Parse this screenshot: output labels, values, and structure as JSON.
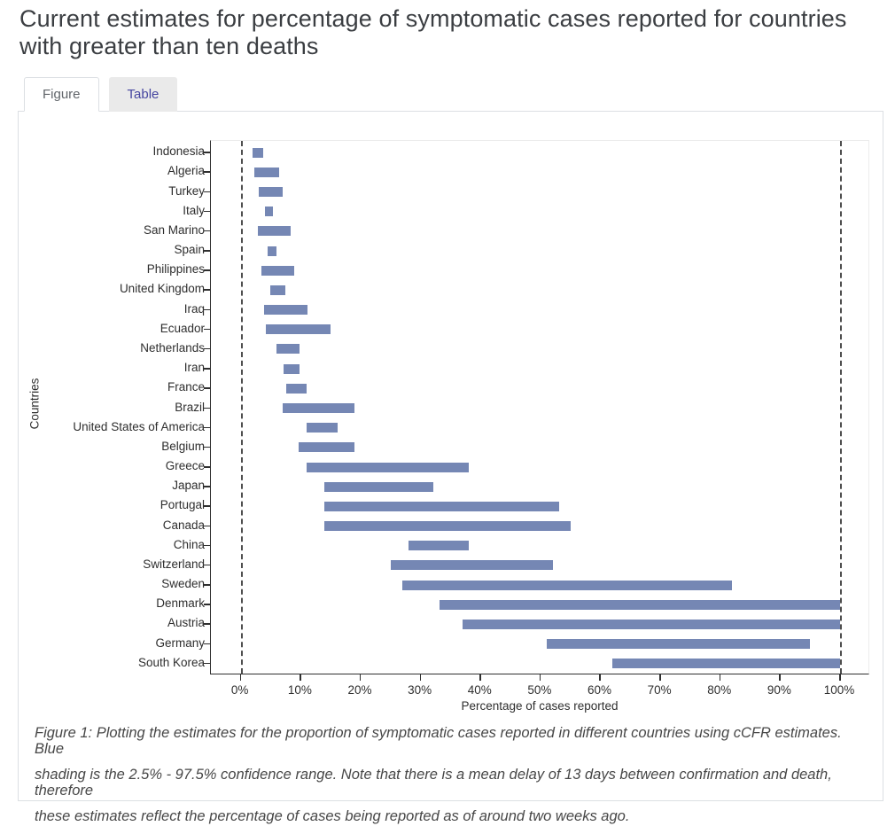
{
  "page_title": "Current estimates for percentage of symptomatic cases reported for countries with greater than ten deaths",
  "tabs": [
    {
      "label": "Figure",
      "active": true
    },
    {
      "label": "Table",
      "active": false
    }
  ],
  "caption": {
    "lines": [
      "Figure 1: Plotting the estimates for the proportion of symptomatic cases reported in different countries using cCFR estimates. Blue",
      "shading is the 2.5% - 97.5% confidence range. Note that there is a mean delay of 13 days between confirmation and death, therefore",
      "these estimates reflect the percentage of cases being reported as of around two weeks ago."
    ]
  },
  "colors": {
    "bar": "#7587b4",
    "reference_line": "#4f4f4f",
    "tab_active_text": "#61656a",
    "tab_inactive_text": "#4545a0",
    "card_border": "#dcdfe3"
  },
  "chart_data": {
    "type": "bar",
    "subtype": "horizontal interval (range) bars showing 2.5%-97.5% confidence range",
    "title": "",
    "xlabel": "Percentage of cases reported",
    "ylabel": "Countries",
    "xlim": [
      0,
      100
    ],
    "x_ticks": [
      "0%",
      "10%",
      "20%",
      "30%",
      "40%",
      "50%",
      "60%",
      "70%",
      "80%",
      "90%",
      "100%"
    ],
    "x_tick_values": [
      0,
      10,
      20,
      30,
      40,
      50,
      60,
      70,
      80,
      90,
      100
    ],
    "reference_lines": [
      0,
      100
    ],
    "grid": false,
    "legend": false,
    "bar_color": "#7587b4",
    "countries": [
      {
        "name": "Indonesia",
        "low": 1.9,
        "high": 3.7
      },
      {
        "name": "Algeria",
        "low": 2.2,
        "high": 6.4
      },
      {
        "name": "Turkey",
        "low": 3.0,
        "high": 7.0
      },
      {
        "name": "Italy",
        "low": 4.0,
        "high": 5.4
      },
      {
        "name": "San Marino",
        "low": 2.9,
        "high": 8.3
      },
      {
        "name": "Spain",
        "low": 4.5,
        "high": 5.9
      },
      {
        "name": "Philippines",
        "low": 3.5,
        "high": 8.9
      },
      {
        "name": "United Kingdom",
        "low": 4.9,
        "high": 7.4
      },
      {
        "name": "Iraq",
        "low": 3.9,
        "high": 11.1
      },
      {
        "name": "Ecuador",
        "low": 4.2,
        "high": 15.0
      },
      {
        "name": "Netherlands",
        "low": 5.9,
        "high": 9.8
      },
      {
        "name": "Iran",
        "low": 7.1,
        "high": 9.8
      },
      {
        "name": "France",
        "low": 7.6,
        "high": 11.0
      },
      {
        "name": "Brazil",
        "low": 7.0,
        "high": 19.0
      },
      {
        "name": "United States of America",
        "low": 11.0,
        "high": 16.1
      },
      {
        "name": "Belgium",
        "low": 9.7,
        "high": 19.0
      },
      {
        "name": "Greece",
        "low": 11.0,
        "high": 38.0
      },
      {
        "name": "Japan",
        "low": 14.0,
        "high": 32.1
      },
      {
        "name": "Portugal",
        "low": 14.0,
        "high": 53.2
      },
      {
        "name": "Canada",
        "low": 14.0,
        "high": 55.1
      },
      {
        "name": "China",
        "low": 28.0,
        "high": 38.0
      },
      {
        "name": "Switzerland",
        "low": 25.0,
        "high": 52.1
      },
      {
        "name": "Sweden",
        "low": 27.0,
        "high": 82.0
      },
      {
        "name": "Denmark",
        "low": 33.1,
        "high": 100.0
      },
      {
        "name": "Austria",
        "low": 37.0,
        "high": 100.0
      },
      {
        "name": "Germany",
        "low": 51.0,
        "high": 95.0
      },
      {
        "name": "South Korea",
        "low": 62.0,
        "high": 100.0
      }
    ]
  }
}
